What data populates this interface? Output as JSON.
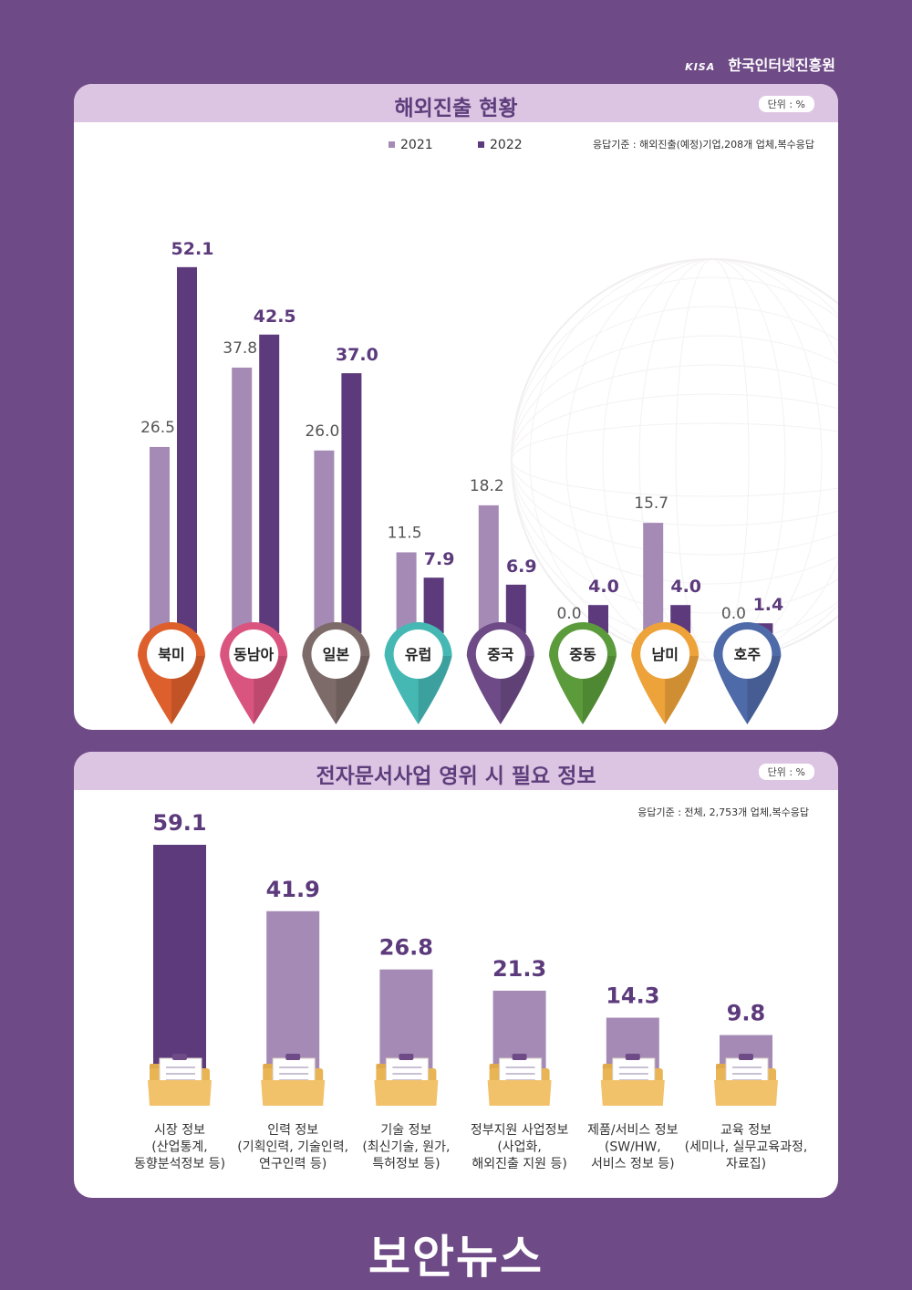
{
  "brand": {
    "kisa": "KISA",
    "org": "한국인터넷진흥원"
  },
  "colors": {
    "bg": "#6e4a86",
    "panel_head": "#dcc5e2",
    "bar_2021": "#a58ab6",
    "bar_2022": "#5c3a7c",
    "value_2022": "#5c3a7c",
    "value_2021": "#555555"
  },
  "chart1": {
    "title": "해외진출 현황",
    "unit": "단위 : %",
    "note": "응답기준 : 해외진출(예정)기업,208개 업체,복수응답"
  },
  "chart2": {
    "title": "전자문서사업 영위 시 필요 정보",
    "unit": "단위 : %",
    "note": "응답기준 : 전체, 2,753개 업체,복수응답"
  },
  "footer": {
    "logo_a": "보",
    "logo_b": "안뉴스"
  },
  "chart_data": [
    {
      "type": "bar",
      "title": "해외진출 현황",
      "categories": [
        "북미",
        "동남아",
        "일본",
        "유럽",
        "중국",
        "중동",
        "남미",
        "호주"
      ],
      "series": [
        {
          "name": "2021",
          "values": [
            26.5,
            37.8,
            26.0,
            11.5,
            18.2,
            0.0,
            15.7,
            0.0
          ],
          "labels": [
            "26.5",
            "37.8",
            "26.0",
            "11.5",
            "18.2",
            "0.0",
            "15.7",
            "0.0"
          ]
        },
        {
          "name": "2022",
          "values": [
            52.1,
            42.5,
            37.0,
            7.9,
            6.9,
            4.0,
            4.0,
            1.4
          ],
          "labels": [
            "52.1",
            "42.5",
            "37.0",
            "7.9",
            "6.9",
            "4.0",
            "4.0",
            "1.4"
          ]
        }
      ],
      "pin_colors": [
        "#dd5f2c",
        "#d9547f",
        "#7d6b69",
        "#45b8b4",
        "#6e4a86",
        "#5b9b3b",
        "#eda23a",
        "#4f6aa8"
      ],
      "legend": "top",
      "ylim": [
        0,
        55
      ]
    },
    {
      "type": "bar",
      "title": "전자문서사업 영위 시 필요 정보",
      "categories": [
        [
          "시장 정보",
          "(산업통계,",
          "동향분석정보 등)"
        ],
        [
          "인력 정보",
          "(기획인력, 기술인력,",
          "연구인력 등)"
        ],
        [
          "기술 정보",
          "(최신기술, 원가,",
          "특허정보 등)"
        ],
        [
          "정부지원 사업정보",
          "(사업화,",
          "해외진출 지원 등)"
        ],
        [
          "제품/서비스 정보",
          "(SW/HW,",
          "서비스 정보 등)"
        ],
        [
          "교육 정보",
          "(세미나, 실무교육과정,",
          "자료집)"
        ]
      ],
      "values": [
        59.1,
        41.9,
        26.8,
        21.3,
        14.3,
        9.8
      ],
      "labels": [
        "59.1",
        "41.9",
        "26.8",
        "21.3",
        "14.3",
        "9.8"
      ],
      "highlight_index": 0,
      "ylim": [
        0,
        60
      ]
    }
  ]
}
